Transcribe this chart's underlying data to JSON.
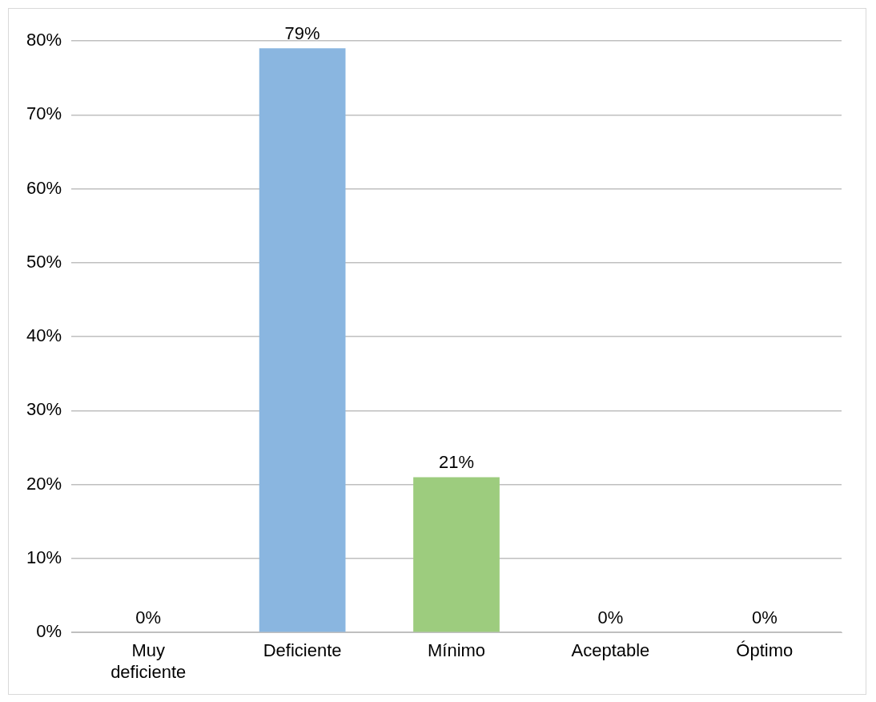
{
  "chart_data": {
    "type": "bar",
    "categories": [
      "Muy deficiente",
      "Deficiente",
      "Mínimo",
      "Aceptable",
      "Óptimo"
    ],
    "values": [
      0,
      79,
      21,
      0,
      0
    ],
    "colors": [
      "#c8a84a",
      "#8ab6e0",
      "#9dcc7e",
      "#c0693a",
      "#808080"
    ],
    "value_labels": [
      "0%",
      "79%",
      "21%",
      "0%",
      "0%"
    ],
    "ylim": [
      0,
      80
    ],
    "yticks": [
      {
        "value": 0,
        "label": "0%"
      },
      {
        "value": 10,
        "label": "10%"
      },
      {
        "value": 20,
        "label": "20%"
      },
      {
        "value": 30,
        "label": "30%"
      },
      {
        "value": 40,
        "label": "40%"
      },
      {
        "value": 50,
        "label": "50%"
      },
      {
        "value": 60,
        "label": "60%"
      },
      {
        "value": 70,
        "label": "70%"
      },
      {
        "value": 80,
        "label": "80%"
      }
    ],
    "grid": "y",
    "legend": false
  }
}
